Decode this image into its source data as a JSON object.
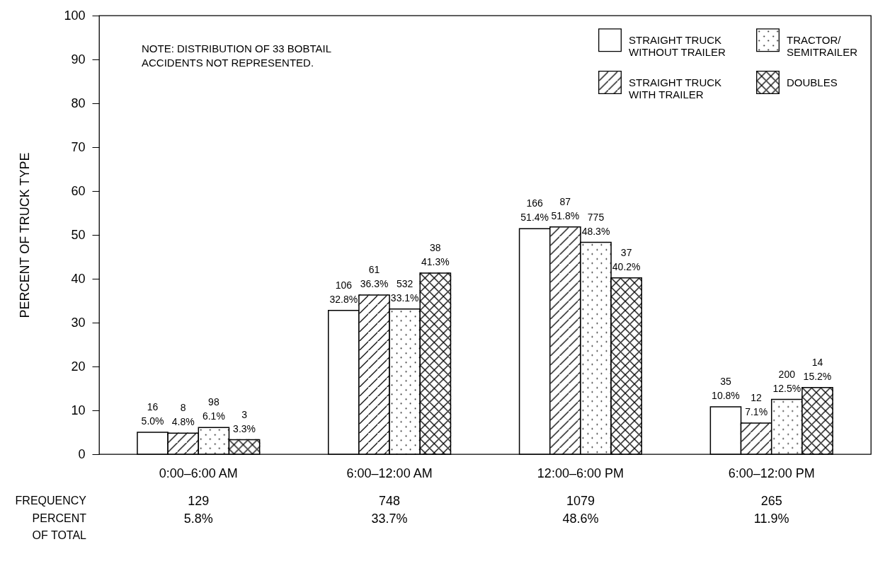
{
  "chart_data": {
    "type": "bar",
    "ylabel": "PERCENT OF TRUCK TYPE",
    "categories": [
      "0:00–6:00 AM",
      "6:00–12:00 AM",
      "12:00–6:00 PM",
      "6:00–12:00 PM"
    ],
    "series": [
      {
        "name": "STRAIGHT TRUCK\nWITHOUT TRAILER",
        "color": "#ffffff",
        "values": [
          5.0,
          32.8,
          51.4,
          10.8
        ],
        "value_labels": [
          "16\n5.0%",
          "106\n32.8%",
          "166\n51.4%",
          "35\n10.8%"
        ]
      },
      {
        "name": "STRAIGHT TRUCK\nWITH TRAILER",
        "color": "#ffffff",
        "values": [
          4.8,
          36.3,
          51.8,
          7.1
        ],
        "value_labels": [
          "8\n4.8%",
          "61\n36.3%",
          "87\n51.8%",
          "12\n7.1%"
        ]
      },
      {
        "name": "TRACTOR/\nSEMITRAILER",
        "color": "#ffffff",
        "values": [
          6.1,
          33.1,
          48.3,
          12.5
        ],
        "value_labels": [
          "98\n6.1%",
          "532\n33.1%",
          "775\n48.3%",
          "200\n12.5%"
        ]
      },
      {
        "name": "DOUBLES",
        "color": "#ffffff",
        "values": [
          3.3,
          41.3,
          40.2,
          15.2
        ],
        "value_labels": [
          "3\n3.3%",
          "38\n41.3%",
          "37\n40.2%",
          "14\n15.2%"
        ]
      }
    ],
    "ylim": [
      0,
      100
    ],
    "yticks": [
      0,
      10,
      20,
      30,
      40,
      50,
      60,
      70,
      80,
      90,
      100
    ],
    "grid": false,
    "legend": "top right",
    "annotations": [
      "NOTE:  DISTRIBUTION OF 33 BOBTAIL\n          ACCIDENTS NOT REPRESENTED.",
      "FREQUENCY",
      "129",
      "748",
      "1079",
      "265",
      "PERCENT\nOF TOTAL",
      "5.8%",
      "33.7%",
      "48.6%",
      "11.9%"
    ]
  }
}
